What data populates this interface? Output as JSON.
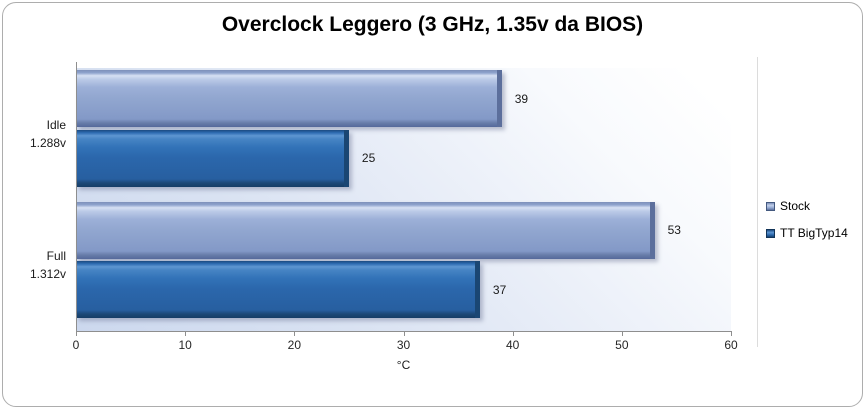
{
  "chart_data": {
    "type": "bar",
    "orientation": "horizontal",
    "title": "Overclock Leggero (3 GHz, 1.35v da BIOS)",
    "categories": [
      "Idle 1.288v",
      "Full 1.312v"
    ],
    "series": [
      {
        "name": "Stock",
        "values": [
          39,
          53
        ],
        "color": "#92a7d0"
      },
      {
        "name": "TT BigTyp14",
        "values": [
          25,
          37
        ],
        "color": "#2b67ac"
      }
    ],
    "xlabel": "°C",
    "xlim": [
      0,
      60
    ],
    "xticks": [
      0,
      10,
      20,
      30,
      40,
      50,
      60
    ],
    "data_labels_shown": true,
    "legend_position": "right",
    "grid": false,
    "plot_background": "gradient white to light blue",
    "accent_colors": {
      "stock_bar": "#92a7d0",
      "tt_bar": "#2b67ac",
      "axis_line": "#8e8e8e",
      "border": "#adadad"
    }
  }
}
